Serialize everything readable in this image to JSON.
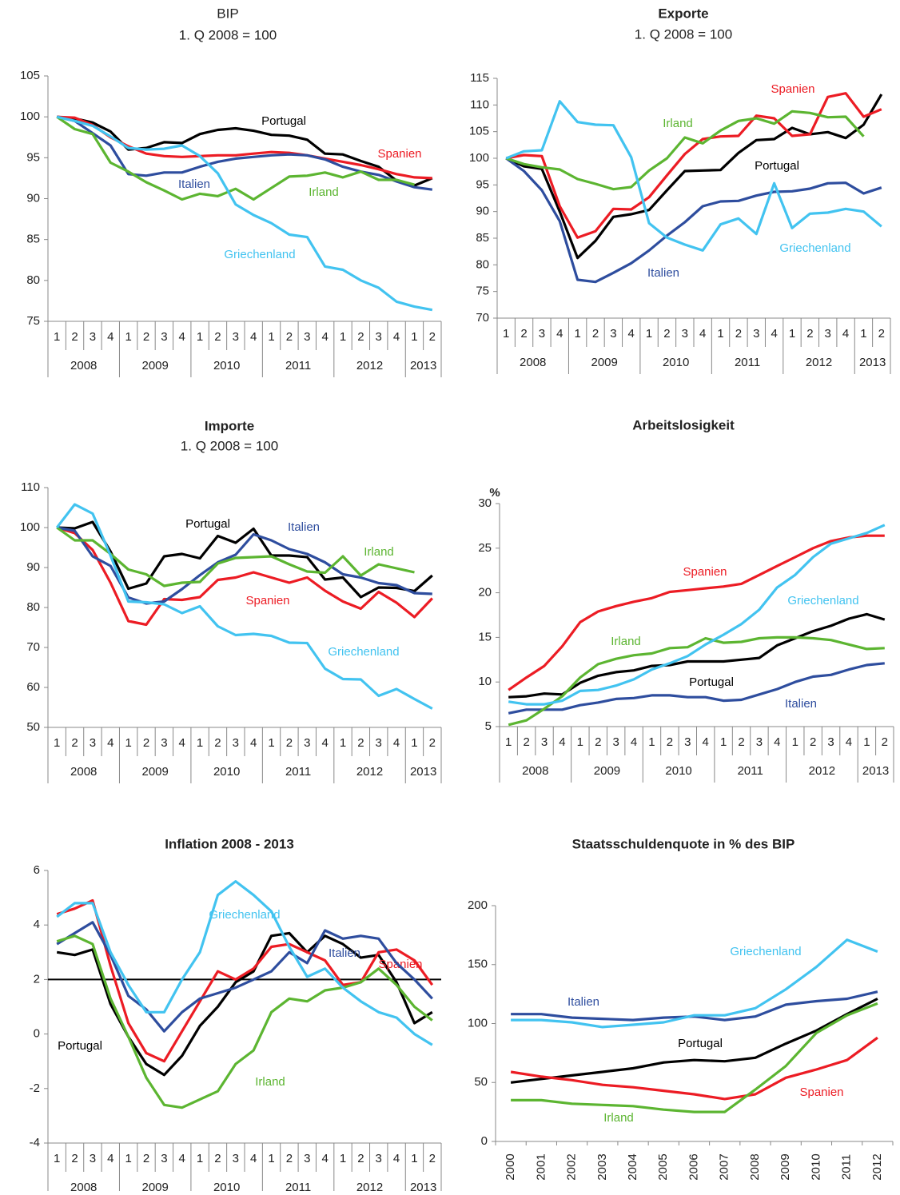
{
  "chart_data": [
    {
      "type": "line",
      "title": "BIP",
      "subtitle": "1. Q 2008 = 100",
      "title_bold": false,
      "categories": [
        "1",
        "2",
        "3",
        "4",
        "1",
        "2",
        "3",
        "4",
        "1",
        "2",
        "3",
        "4",
        "1",
        "2",
        "3",
        "4",
        "1",
        "2",
        "3",
        "4",
        "1",
        "2"
      ],
      "years": [
        "2008",
        "2009",
        "2010",
        "2011",
        "2012",
        "2013"
      ],
      "ylim": [
        75,
        105
      ],
      "yticks": [
        75,
        80,
        85,
        90,
        95,
        100,
        105
      ],
      "series": [
        {
          "name": "Portugal",
          "color": "#000000",
          "values": [
            100,
            99.8,
            99.3,
            98.2,
            96,
            96.2,
            96.9,
            96.8,
            97.9,
            98.4,
            98.6,
            98.3,
            97.8,
            97.7,
            97.2,
            95.5,
            95.4,
            94.6,
            93.9,
            92.2,
            91.6,
            92.5
          ]
        },
        {
          "name": "Spanien",
          "color": "#ec1c24",
          "values": [
            100,
            99.9,
            99,
            97.5,
            96.4,
            95.5,
            95.2,
            95.1,
            95.2,
            95.3,
            95.3,
            95.5,
            95.7,
            95.6,
            95.3,
            94.9,
            94.5,
            94.1,
            93.6,
            93,
            92.6,
            92.5
          ]
        },
        {
          "name": "Italien",
          "color": "#2e4d9e",
          "values": [
            100,
            99.5,
            98,
            96.5,
            93,
            92.8,
            93.2,
            93.2,
            93.9,
            94.5,
            94.9,
            95.1,
            95.3,
            95.4,
            95.3,
            94.8,
            93.9,
            93.3,
            92.9,
            92.1,
            91.4,
            91.1
          ]
        },
        {
          "name": "Irland",
          "color": "#5cb531",
          "values": [
            100,
            98.5,
            97.9,
            94.4,
            93.3,
            92,
            91,
            89.9,
            90.6,
            90.3,
            91.2,
            89.9,
            91.3,
            92.7,
            92.8,
            93.2,
            92.6,
            93.3,
            92.3,
            92.3,
            91.7,
            null
          ]
        },
        {
          "name": "Griechenland",
          "color": "#42c3f0",
          "values": [
            100,
            99.5,
            98.9,
            97.6,
            96.2,
            96,
            96.1,
            96.5,
            95.2,
            93.1,
            89.3,
            88,
            87,
            85.6,
            85.3,
            81.7,
            81.3,
            80,
            79.1,
            77.4,
            76.8,
            76.4
          ]
        }
      ]
    },
    {
      "type": "line",
      "title": "Exporte",
      "subtitle": "1. Q 2008 = 100",
      "title_bold": true,
      "categories": [
        "1",
        "2",
        "3",
        "4",
        "1",
        "2",
        "3",
        "4",
        "1",
        "2",
        "3",
        "4",
        "1",
        "2",
        "3",
        "4",
        "1",
        "2",
        "3",
        "4",
        "1",
        "2"
      ],
      "years": [
        "2008",
        "2009",
        "2010",
        "2011",
        "2012",
        "2013"
      ],
      "ylim": [
        70,
        115
      ],
      "yticks": [
        70,
        75,
        80,
        85,
        90,
        95,
        100,
        105,
        110,
        115
      ],
      "series": [
        {
          "name": "Portugal",
          "color": "#000000",
          "values": [
            100,
            98.5,
            98,
            90,
            81.3,
            84.5,
            89,
            89.5,
            90.3,
            94,
            97.6,
            97.7,
            97.8,
            101,
            103.4,
            103.6,
            105.7,
            104.5,
            104.9,
            103.8,
            106.3,
            112
          ]
        },
        {
          "name": "Spanien",
          "color": "#ec1c24",
          "values": [
            100,
            100.6,
            100.4,
            91,
            85.1,
            86.3,
            90.5,
            90.4,
            92.7,
            96.8,
            100.8,
            103.6,
            104.1,
            104.2,
            108,
            107.5,
            104.2,
            104.5,
            111.5,
            112.2,
            107.8,
            109.2
          ]
        },
        {
          "name": "Italien",
          "color": "#2e4d9e",
          "values": [
            100,
            97.6,
            94,
            88.2,
            77.2,
            76.8,
            78.5,
            80.3,
            82.7,
            85.5,
            88,
            91,
            91.9,
            92,
            93,
            93.7,
            93.8,
            94.3,
            95.3,
            95.4,
            93.4,
            94.5
          ]
        },
        {
          "name": "Irland",
          "color": "#5cb531",
          "values": [
            100,
            98.9,
            98.3,
            97.9,
            96.1,
            95.2,
            94.2,
            94.6,
            97.7,
            100,
            103.9,
            102.8,
            105.2,
            107,
            107.5,
            106.5,
            108.8,
            108.5,
            107.7,
            107.8,
            104.1,
            null
          ]
        },
        {
          "name": "Griechenland",
          "color": "#42c3f0",
          "values": [
            100,
            101.3,
            101.5,
            110.7,
            106.8,
            106.3,
            106.2,
            100.2,
            87.8,
            85.1,
            83.8,
            82.7,
            87.6,
            88.7,
            85.8,
            95.3,
            86.9,
            89.6,
            89.8,
            90.5,
            90,
            87.2
          ]
        }
      ]
    },
    {
      "type": "line",
      "title": "Importe",
      "subtitle": "1. Q 2008 = 100",
      "title_bold": true,
      "categories": [
        "1",
        "2",
        "3",
        "4",
        "1",
        "2",
        "3",
        "4",
        "1",
        "2",
        "3",
        "4",
        "1",
        "2",
        "3",
        "4",
        "1",
        "2",
        "3",
        "4",
        "1",
        "2"
      ],
      "years": [
        "2008",
        "2009",
        "2010",
        "2011",
        "2012",
        "2013"
      ],
      "ylim": [
        50,
        110
      ],
      "yticks": [
        50,
        60,
        70,
        80,
        90,
        100,
        110
      ],
      "series": [
        {
          "name": "Portugal",
          "color": "#000000",
          "values": [
            100,
            99.8,
            101.4,
            94,
            84.7,
            86,
            92.8,
            93.4,
            92.3,
            97.9,
            96.2,
            99.7,
            93,
            93,
            92.6,
            87,
            87.5,
            82.6,
            85,
            84.9,
            84.1,
            88
          ]
        },
        {
          "name": "Spanien",
          "color": "#ec1c24",
          "values": [
            100,
            98.6,
            94.4,
            86.2,
            76.6,
            75.7,
            82.1,
            81.9,
            82.6,
            86.9,
            87.5,
            88.8,
            87.5,
            86.2,
            87.5,
            84.2,
            81.5,
            79.7,
            83.9,
            81.2,
            77.6,
            82.3
          ]
        },
        {
          "name": "Italien",
          "color": "#2e4d9e",
          "values": [
            100,
            99.2,
            92.8,
            90.4,
            82.5,
            81,
            81.5,
            84.6,
            88.1,
            91.3,
            93.2,
            98.3,
            96.8,
            94.6,
            93.4,
            91.3,
            88.3,
            87.5,
            86.1,
            85.6,
            83.6,
            83.4
          ]
        },
        {
          "name": "Irland",
          "color": "#5cb531",
          "values": [
            100,
            96.8,
            96.8,
            93.4,
            89.5,
            88.3,
            85.4,
            86.2,
            86.4,
            91,
            92.4,
            92.6,
            92.8,
            90.8,
            89,
            88.7,
            92.8,
            88,
            90.8,
            89.8,
            88.8,
            null
          ]
        },
        {
          "name": "Griechenland",
          "color": "#42c3f0",
          "values": [
            100,
            105.8,
            103.5,
            93,
            81.5,
            81.3,
            80.8,
            78.6,
            80.3,
            75.3,
            73.1,
            73.4,
            72.9,
            71.2,
            71.1,
            64.7,
            62.1,
            62,
            57.9,
            59.6,
            57.1,
            54.7
          ]
        }
      ]
    },
    {
      "type": "line",
      "title": "Arbeitslosigkeit",
      "title_bold": true,
      "y_unit": "%",
      "categories": [
        "1",
        "2",
        "3",
        "4",
        "1",
        "2",
        "3",
        "4",
        "1",
        "2",
        "3",
        "4",
        "1",
        "2",
        "3",
        "4",
        "1",
        "2",
        "3",
        "4",
        "1",
        "2"
      ],
      "years": [
        "2008",
        "2009",
        "2010",
        "2011",
        "2012",
        "2013"
      ],
      "ylim": [
        5,
        30
      ],
      "yticks": [
        5,
        10,
        15,
        20,
        25,
        30
      ],
      "series": [
        {
          "name": "Portugal",
          "color": "#000000",
          "values": [
            8.3,
            8.4,
            8.7,
            8.6,
            9.9,
            10.7,
            11.1,
            11.3,
            11.8,
            11.9,
            12.3,
            12.3,
            12.3,
            12.5,
            12.7,
            14.1,
            14.9,
            15.7,
            16.3,
            17.1,
            17.6,
            17
          ]
        },
        {
          "name": "Spanien",
          "color": "#ec1c24",
          "values": [
            9.1,
            10.5,
            11.8,
            14,
            16.7,
            17.9,
            18.5,
            19,
            19.4,
            20.1,
            20.3,
            20.5,
            20.7,
            21,
            22,
            23,
            24,
            25,
            25.8,
            26.2,
            26.4,
            26.4
          ]
        },
        {
          "name": "Italien",
          "color": "#2e4d9e",
          "values": [
            6.5,
            6.9,
            6.9,
            6.9,
            7.4,
            7.7,
            8.1,
            8.2,
            8.5,
            8.5,
            8.3,
            8.3,
            7.9,
            8,
            8.6,
            9.2,
            10,
            10.6,
            10.8,
            11.4,
            11.9,
            12.1
          ]
        },
        {
          "name": "Irland",
          "color": "#5cb531",
          "values": [
            5.2,
            5.7,
            7,
            8.4,
            10.5,
            12,
            12.6,
            13,
            13.2,
            13.8,
            13.9,
            14.9,
            14.4,
            14.5,
            14.9,
            15,
            15,
            14.9,
            14.7,
            14.2,
            13.7,
            13.8
          ]
        },
        {
          "name": "Griechenland",
          "color": "#42c3f0",
          "values": [
            7.8,
            7.5,
            7.5,
            7.9,
            9,
            9.1,
            9.6,
            10.3,
            11.4,
            12.1,
            12.9,
            14.2,
            15.3,
            16.5,
            18.1,
            20.6,
            22,
            24,
            25.5,
            26.1,
            26.7,
            27.6
          ]
        }
      ]
    },
    {
      "type": "line",
      "title": "Inflation 2008 - 2013",
      "title_bold": true,
      "reference_line": 2,
      "categories": [
        "1",
        "2",
        "3",
        "4",
        "1",
        "2",
        "3",
        "4",
        "1",
        "2",
        "3",
        "4",
        "1",
        "2",
        "3",
        "4",
        "1",
        "2",
        "3",
        "4",
        "1",
        "2"
      ],
      "years": [
        "2008",
        "2009",
        "2010",
        "2011",
        "2012",
        "2013"
      ],
      "ylim": [
        -4,
        6
      ],
      "yticks": [
        -4,
        -2,
        0,
        2,
        4,
        6
      ],
      "series": [
        {
          "name": "Portugal",
          "color": "#000000",
          "values": [
            3,
            2.9,
            3.1,
            1.1,
            -0.1,
            -1.1,
            -1.5,
            -0.8,
            0.3,
            1,
            1.9,
            2.3,
            3.6,
            3.7,
            3,
            3.6,
            3.3,
            2.8,
            2.9,
            1.9,
            0.4,
            0.8
          ]
        },
        {
          "name": "Spanien",
          "color": "#ec1c24",
          "values": [
            4.4,
            4.6,
            4.9,
            2.5,
            0.4,
            -0.7,
            -1,
            0.1,
            1.2,
            2.3,
            2,
            2.4,
            3.2,
            3.3,
            3,
            2.7,
            1.8,
            1.9,
            3,
            3.1,
            2.7,
            1.8
          ]
        },
        {
          "name": "Italien",
          "color": "#2e4d9e",
          "values": [
            3.3,
            3.7,
            4.1,
            2.9,
            1.4,
            0.9,
            0.1,
            0.8,
            1.3,
            1.5,
            1.7,
            2,
            2.3,
            3,
            2.6,
            3.8,
            3.5,
            3.6,
            3.5,
            2.6,
            2,
            1.3
          ]
        },
        {
          "name": "Irland",
          "color": "#5cb531",
          "values": [
            3.4,
            3.6,
            3.3,
            1.3,
            -0.1,
            -1.6,
            -2.6,
            -2.7,
            -2.4,
            -2.1,
            -1.1,
            -0.6,
            0.8,
            1.3,
            1.2,
            1.6,
            1.7,
            1.9,
            2.4,
            1.8,
            1,
            0.5
          ]
        },
        {
          "name": "Griechenland",
          "color": "#42c3f0",
          "values": [
            4.3,
            4.8,
            4.8,
            3,
            1.8,
            0.8,
            0.8,
            2,
            3,
            5.1,
            5.6,
            5.1,
            4.5,
            3.2,
            2.1,
            2.4,
            1.7,
            1.2,
            0.8,
            0.6,
            0,
            -0.4
          ]
        }
      ]
    },
    {
      "type": "line",
      "title": "Staatsschuldenquote in % des BIP",
      "title_bold": true,
      "rotate_categories": true,
      "categories": [
        "2000",
        "2001",
        "2002",
        "2003",
        "2004",
        "2005",
        "2006",
        "2007",
        "2008",
        "2009",
        "2010",
        "2011",
        "2012"
      ],
      "ylim": [
        0,
        200
      ],
      "yticks": [
        0,
        50,
        100,
        150,
        200
      ],
      "series": [
        {
          "name": "Portugal",
          "color": "#000000",
          "values": [
            50,
            53,
            56,
            59,
            62,
            67,
            69,
            68,
            71,
            83,
            94,
            108,
            121
          ]
        },
        {
          "name": "Spanien",
          "color": "#ec1c24",
          "values": [
            59,
            55,
            52,
            48,
            46,
            43,
            40,
            36,
            40,
            54,
            61,
            69,
            88
          ]
        },
        {
          "name": "Italien",
          "color": "#2e4d9e",
          "values": [
            108,
            108,
            105,
            104,
            103,
            105,
            106,
            103,
            106,
            116,
            119,
            121,
            127
          ]
        },
        {
          "name": "Irland",
          "color": "#5cb531",
          "values": [
            35,
            35,
            32,
            31,
            30,
            27,
            25,
            25,
            44,
            64,
            92,
            107,
            117
          ]
        },
        {
          "name": "Griechenland",
          "color": "#42c3f0",
          "values": [
            103,
            103,
            101,
            97,
            99,
            101,
            107,
            107,
            113,
            129,
            148,
            171,
            161
          ]
        }
      ]
    }
  ]
}
